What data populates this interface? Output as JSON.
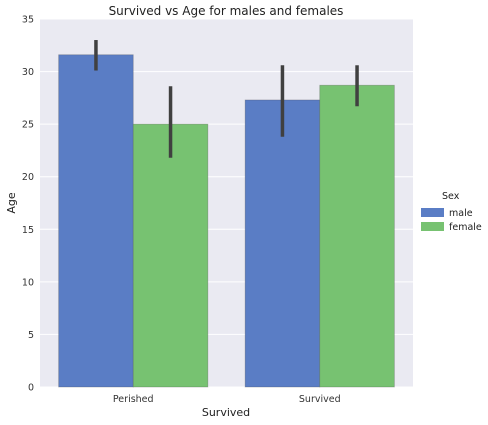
{
  "chart_data": {
    "type": "bar",
    "title": "Survived vs Age for males and females",
    "xlabel": "Survived",
    "ylabel": "Age",
    "categories": [
      "Perished",
      "Survived"
    ],
    "ylim": [
      0,
      35
    ],
    "yticks": [
      0,
      5,
      10,
      15,
      20,
      25,
      30,
      35
    ],
    "grid": true,
    "legend": {
      "title": "Sex",
      "placement": "right"
    },
    "series": [
      {
        "name": "male",
        "color": "#5a7dc5",
        "values": [
          31.6,
          27.3
        ],
        "ci": [
          [
            30.1,
            33.0
          ],
          [
            23.8,
            30.6
          ]
        ]
      },
      {
        "name": "female",
        "color": "#77c271",
        "values": [
          25.0,
          28.7
        ],
        "ci": [
          [
            21.8,
            28.6
          ],
          [
            26.7,
            30.6
          ]
        ]
      }
    ]
  }
}
